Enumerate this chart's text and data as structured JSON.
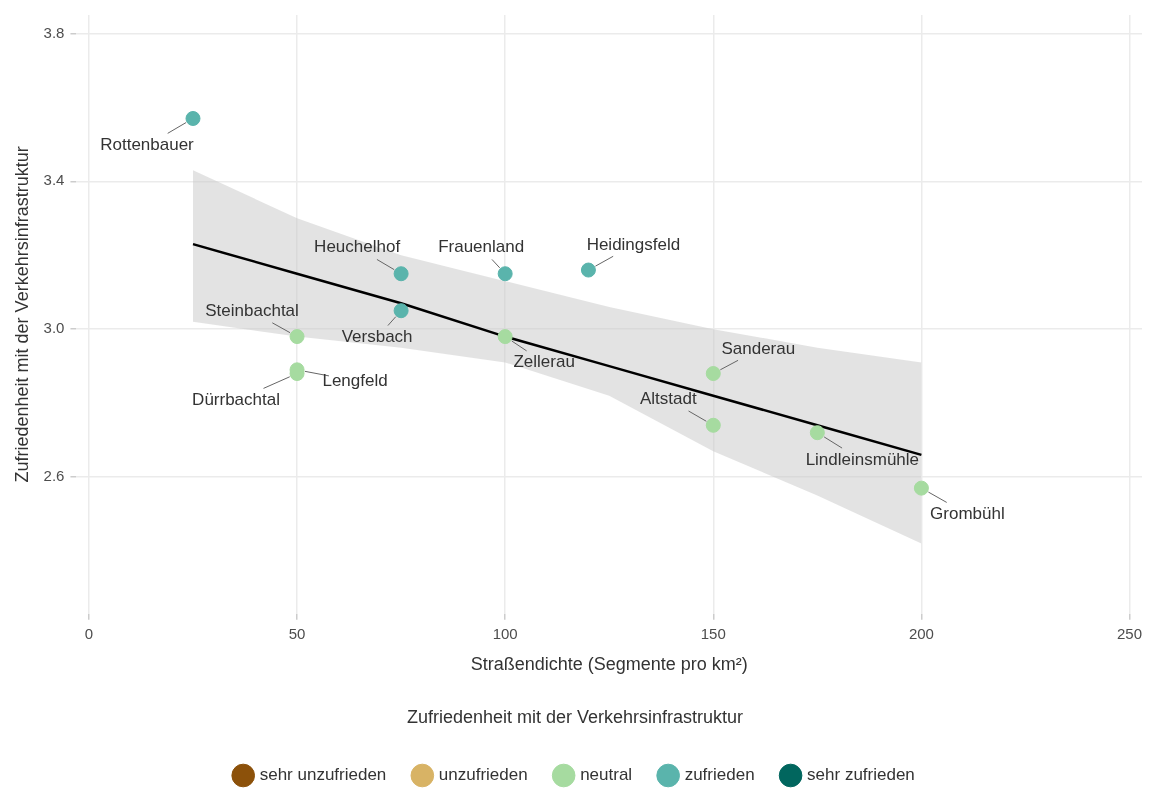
{
  "chart_data": {
    "type": "scatter",
    "xlabel": "Straßendichte (Segmente pro km²)",
    "ylabel": "Zufriedenheit mit der Verkehrsinfrastruktur",
    "legend_title": "Zufriedenheit mit der Verkehrsinfrastruktur",
    "legend": "bottom",
    "grid": true,
    "marker": "circle",
    "xlim": [
      -3,
      253
    ],
    "xticks": [
      0,
      50,
      100,
      150,
      200,
      250
    ],
    "ylim": [
      2.23,
      3.85
    ],
    "yticks": [
      2.6,
      {
        "value": 3,
        "label": "3.0"
      },
      3.4,
      3.8
    ],
    "series": [
      {
        "name": "sehr unzufrieden",
        "color": "#8c510a"
      },
      {
        "name": "unzufrieden",
        "color": "#d8b365"
      },
      {
        "name": "neutral",
        "color": "#a6dba0",
        "x": [
          50,
          100,
          50,
          50,
          150,
          150,
          175,
          200
        ],
        "values": [
          2.98,
          2.98,
          2.89,
          2.88,
          2.88,
          2.74,
          2.72,
          2.57
        ]
      },
      {
        "name": "zufrieden",
        "color": "#5ab4ac",
        "x": [
          25,
          75,
          100,
          120,
          75
        ],
        "values": [
          3.57,
          3.15,
          3.15,
          3.16,
          3.05
        ]
      },
      {
        "name": "sehr zufrieden",
        "color": "#01665e"
      },
      {
        "type": "line",
        "marker": "none",
        "color": "#000000",
        "x": [
          25,
          50,
          75,
          100,
          125,
          150,
          175,
          200
        ],
        "values": [
          3.23,
          3.15,
          3.07,
          2.98,
          2.9,
          2.82,
          2.74,
          2.66
        ],
        "lower": [
          3.02,
          2.98,
          2.95,
          2.91,
          2.82,
          2.67,
          2.55,
          2.42
        ],
        "upper": [
          3.43,
          3.3,
          3.2,
          3.13,
          3.06,
          3.0,
          2.95,
          2.91
        ]
      }
    ],
    "annotations": [
      {
        "text": "Rottenbauer",
        "x": 25,
        "y": 3.57
      },
      {
        "text": "Heuchelhof",
        "x": 75,
        "y": 3.15
      },
      {
        "text": "Frauenland",
        "x": 100,
        "y": 3.15
      },
      {
        "text": "Heidingsfeld",
        "x": 120,
        "y": 3.16
      },
      {
        "text": "Versbach",
        "x": 75,
        "y": 3.05
      },
      {
        "text": "Steinbachtal",
        "x": 50,
        "y": 2.98
      },
      {
        "text": "Zellerau",
        "x": 100,
        "y": 2.98
      },
      {
        "text": "Lengfeld",
        "x": 50,
        "y": 2.89
      },
      {
        "text": "Dürrbachtal",
        "x": 50,
        "y": 2.88
      },
      {
        "text": "Sanderau",
        "x": 150,
        "y": 2.88
      },
      {
        "text": "Altstadt",
        "x": 150,
        "y": 2.74
      },
      {
        "text": "Lindleinsmühle",
        "x": 175,
        "y": 2.72
      },
      {
        "text": "Grombühl",
        "x": 200,
        "y": 2.57
      }
    ]
  }
}
